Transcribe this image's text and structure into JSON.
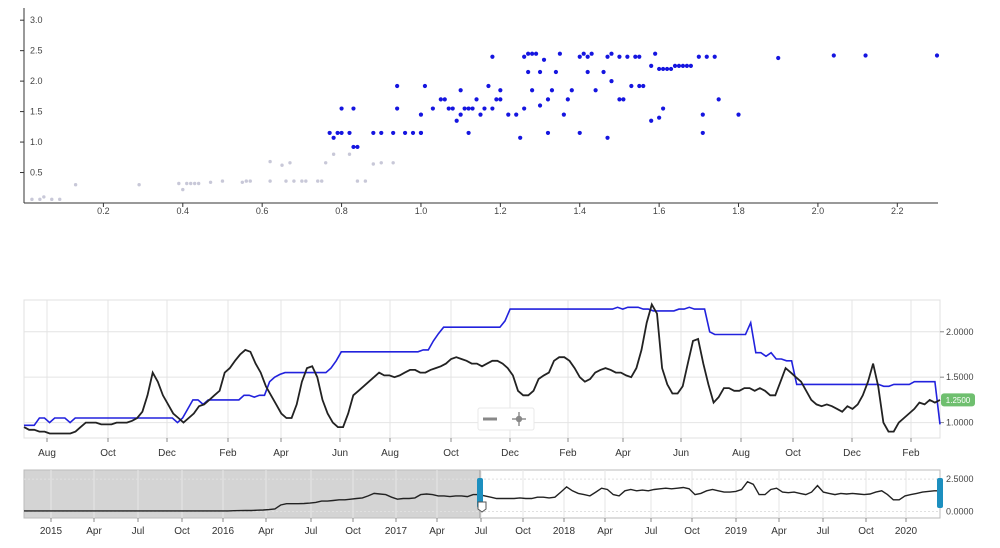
{
  "colors": {
    "scatter_point": "#1515e0",
    "scatter_faint": "#c8c8d8",
    "blue_line": "#2222dd",
    "black_line": "#222222",
    "badge": "#6fbf6f",
    "handle": "#1c8fbf",
    "shade": "#d4d4d4"
  },
  "chart_data": [
    {
      "type": "scatter",
      "xlim": [
        0.0,
        2.3
      ],
      "ylim": [
        0.0,
        3.2
      ],
      "x_ticks": [
        "0.2",
        "0.4",
        "0.6",
        "0.8",
        "1.0",
        "1.2",
        "1.4",
        "1.6",
        "1.8",
        "2.0",
        "2.2"
      ],
      "y_ticks": [
        "0.5",
        "1.0",
        "1.5",
        "2.0",
        "2.5",
        "3.0"
      ],
      "faint_points": [
        [
          0.02,
          0.06
        ],
        [
          0.04,
          0.06
        ],
        [
          0.05,
          0.1
        ],
        [
          0.07,
          0.06
        ],
        [
          0.09,
          0.06
        ],
        [
          0.13,
          0.3
        ],
        [
          0.29,
          0.3
        ],
        [
          0.39,
          0.32
        ],
        [
          0.4,
          0.22
        ],
        [
          0.41,
          0.32
        ],
        [
          0.42,
          0.32
        ],
        [
          0.43,
          0.32
        ],
        [
          0.44,
          0.32
        ],
        [
          0.47,
          0.34
        ],
        [
          0.5,
          0.36
        ],
        [
          0.55,
          0.34
        ],
        [
          0.56,
          0.36
        ],
        [
          0.57,
          0.36
        ],
        [
          0.62,
          0.36
        ],
        [
          0.62,
          0.68
        ],
        [
          0.65,
          0.62
        ],
        [
          0.66,
          0.36
        ],
        [
          0.67,
          0.66
        ],
        [
          0.68,
          0.36
        ],
        [
          0.7,
          0.36
        ],
        [
          0.71,
          0.36
        ],
        [
          0.74,
          0.36
        ],
        [
          0.75,
          0.36
        ],
        [
          0.76,
          0.66
        ],
        [
          0.78,
          0.8
        ],
        [
          0.82,
          0.8
        ],
        [
          0.84,
          0.36
        ],
        [
          0.86,
          0.36
        ],
        [
          0.88,
          0.64
        ],
        [
          0.9,
          0.66
        ],
        [
          0.93,
          0.66
        ]
      ],
      "points": [
        [
          0.77,
          1.15
        ],
        [
          0.78,
          1.07
        ],
        [
          0.79,
          1.15
        ],
        [
          0.8,
          1.15
        ],
        [
          0.8,
          1.55
        ],
        [
          0.82,
          1.15
        ],
        [
          0.83,
          1.55
        ],
        [
          0.83,
          0.92
        ],
        [
          0.84,
          0.92
        ],
        [
          0.88,
          1.15
        ],
        [
          0.9,
          1.15
        ],
        [
          0.93,
          1.15
        ],
        [
          0.94,
          1.55
        ],
        [
          0.94,
          1.92
        ],
        [
          0.96,
          1.15
        ],
        [
          0.98,
          1.15
        ],
        [
          1.0,
          1.15
        ],
        [
          1.0,
          1.45
        ],
        [
          1.0,
          1.15
        ],
        [
          1.01,
          1.92
        ],
        [
          1.03,
          1.55
        ],
        [
          1.05,
          1.7
        ],
        [
          1.06,
          1.7
        ],
        [
          1.07,
          1.55
        ],
        [
          1.08,
          1.55
        ],
        [
          1.09,
          1.35
        ],
        [
          1.1,
          1.45
        ],
        [
          1.1,
          1.85
        ],
        [
          1.11,
          1.55
        ],
        [
          1.12,
          1.55
        ],
        [
          1.12,
          1.15
        ],
        [
          1.13,
          1.55
        ],
        [
          1.14,
          1.7
        ],
        [
          1.15,
          1.45
        ],
        [
          1.16,
          1.55
        ],
        [
          1.17,
          1.92
        ],
        [
          1.18,
          1.55
        ],
        [
          1.18,
          2.4
        ],
        [
          1.19,
          1.7
        ],
        [
          1.2,
          1.85
        ],
        [
          1.2,
          1.7
        ],
        [
          1.22,
          1.45
        ],
        [
          1.24,
          1.45
        ],
        [
          1.25,
          1.07
        ],
        [
          1.26,
          2.4
        ],
        [
          1.26,
          1.55
        ],
        [
          1.27,
          2.15
        ],
        [
          1.27,
          2.45
        ],
        [
          1.28,
          2.45
        ],
        [
          1.28,
          1.85
        ],
        [
          1.29,
          2.45
        ],
        [
          1.3,
          1.6
        ],
        [
          1.3,
          2.15
        ],
        [
          1.31,
          2.35
        ],
        [
          1.32,
          1.15
        ],
        [
          1.32,
          1.7
        ],
        [
          1.33,
          1.85
        ],
        [
          1.34,
          2.15
        ],
        [
          1.35,
          2.45
        ],
        [
          1.36,
          1.45
        ],
        [
          1.37,
          1.7
        ],
        [
          1.38,
          1.85
        ],
        [
          1.4,
          2.4
        ],
        [
          1.4,
          1.15
        ],
        [
          1.41,
          2.45
        ],
        [
          1.42,
          2.4
        ],
        [
          1.42,
          2.15
        ],
        [
          1.43,
          2.45
        ],
        [
          1.44,
          1.85
        ],
        [
          1.46,
          2.15
        ],
        [
          1.47,
          1.07
        ],
        [
          1.47,
          2.4
        ],
        [
          1.48,
          2.0
        ],
        [
          1.48,
          2.45
        ],
        [
          1.5,
          1.7
        ],
        [
          1.5,
          2.4
        ],
        [
          1.51,
          1.7
        ],
        [
          1.52,
          2.4
        ],
        [
          1.53,
          1.92
        ],
        [
          1.54,
          2.4
        ],
        [
          1.55,
          2.4
        ],
        [
          1.55,
          1.92
        ],
        [
          1.56,
          1.92
        ],
        [
          1.58,
          2.25
        ],
        [
          1.58,
          1.35
        ],
        [
          1.59,
          2.45
        ],
        [
          1.6,
          1.4
        ],
        [
          1.6,
          2.2
        ],
        [
          1.61,
          1.55
        ],
        [
          1.61,
          2.2
        ],
        [
          1.62,
          2.2
        ],
        [
          1.63,
          2.2
        ],
        [
          1.64,
          2.25
        ],
        [
          1.65,
          2.25
        ],
        [
          1.66,
          2.25
        ],
        [
          1.67,
          2.25
        ],
        [
          1.68,
          2.25
        ],
        [
          1.7,
          2.4
        ],
        [
          1.71,
          1.45
        ],
        [
          1.71,
          1.15
        ],
        [
          1.72,
          2.4
        ],
        [
          1.74,
          2.4
        ],
        [
          1.75,
          1.7
        ],
        [
          1.8,
          1.45
        ],
        [
          1.9,
          2.38
        ],
        [
          2.04,
          2.42
        ],
        [
          2.12,
          2.42
        ],
        [
          2.3,
          2.42
        ]
      ]
    },
    {
      "type": "line",
      "x_ticks": [
        "Aug",
        "Oct",
        "Dec",
        "Feb",
        "Apr",
        "Jun",
        "Aug",
        "Oct",
        "Dec",
        "Feb",
        "Apr",
        "Jun",
        "Aug",
        "Oct",
        "Dec",
        "Feb"
      ],
      "y_ticks": [
        "1.0000",
        "1.5000",
        "2.0000"
      ],
      "ylim": [
        0.83,
        2.35
      ],
      "current_value": "1.2500",
      "series": [
        {
          "values": [
            0.97,
            0.97,
            0.97,
            1.05,
            1.05,
            1.0,
            1.05,
            1.05,
            1.05,
            1.0,
            1.05,
            1.05,
            1.05,
            1.05,
            1.05,
            1.05,
            1.05,
            1.05,
            1.05,
            1.05,
            1.05,
            1.05,
            1.05,
            1.05,
            1.05,
            1.05,
            1.05,
            1.05,
            1.05,
            1.05,
            1.0,
            1.05,
            1.15,
            1.25,
            1.25,
            1.2,
            1.25,
            1.25,
            1.25,
            1.25,
            1.25,
            1.25,
            1.25,
            1.3,
            1.3,
            1.28,
            1.3,
            1.3,
            1.45,
            1.5,
            1.53,
            1.55,
            1.55,
            1.55,
            1.55,
            1.55,
            1.55,
            1.55,
            1.55,
            1.55,
            1.6,
            1.68,
            1.78,
            1.78,
            1.78,
            1.78,
            1.78,
            1.78,
            1.78,
            1.78,
            1.78,
            1.78,
            1.78,
            1.78,
            1.78,
            1.78,
            1.78,
            1.78,
            1.8,
            1.8,
            1.9,
            1.98,
            2.05,
            2.05,
            2.05,
            2.05,
            2.05,
            2.05,
            2.05,
            2.05,
            2.05,
            2.05,
            2.05,
            2.05,
            2.12,
            2.25,
            2.25,
            2.25,
            2.25,
            2.25,
            2.25,
            2.25,
            2.25,
            2.25,
            2.25,
            2.25,
            2.25,
            2.25,
            2.25,
            2.25,
            2.25,
            2.25,
            2.25,
            2.25,
            2.25,
            2.25,
            2.27,
            2.25,
            2.27,
            2.27,
            2.27,
            2.25,
            2.25,
            2.23,
            2.23,
            2.23,
            2.23,
            2.23,
            2.25,
            2.25,
            2.27,
            2.25,
            2.25,
            2.25,
            2.0,
            1.97,
            1.97,
            1.97,
            1.97,
            1.97,
            1.97,
            1.97,
            2.1,
            1.77,
            1.77,
            1.73,
            1.77,
            1.7,
            1.7,
            1.68,
            1.68,
            1.42,
            1.42,
            1.42,
            1.42,
            1.42,
            1.42,
            1.42,
            1.42,
            1.42,
            1.42,
            1.42,
            1.42,
            1.42,
            1.42,
            1.42,
            1.42,
            1.42,
            1.4,
            1.4,
            1.42,
            1.42,
            1.42,
            1.42,
            1.45,
            1.45,
            1.45,
            1.45,
            1.45,
            0.98
          ]
        },
        {
          "values": [
            0.95,
            0.92,
            0.92,
            0.9,
            0.9,
            0.88,
            0.88,
            0.88,
            0.88,
            0.88,
            0.9,
            0.95,
            1.0,
            1.0,
            1.0,
            0.98,
            0.98,
            0.98,
            1.0,
            1.0,
            1.0,
            1.02,
            1.05,
            1.12,
            1.3,
            1.55,
            1.45,
            1.3,
            1.2,
            1.1,
            1.05,
            1.0,
            1.05,
            1.1,
            1.18,
            1.2,
            1.25,
            1.3,
            1.35,
            1.55,
            1.6,
            1.68,
            1.75,
            1.8,
            1.78,
            1.65,
            1.55,
            1.4,
            1.3,
            1.2,
            1.1,
            1.05,
            1.05,
            1.2,
            1.45,
            1.6,
            1.62,
            1.5,
            1.25,
            1.1,
            1.0,
            0.95,
            0.95,
            1.1,
            1.3,
            1.35,
            1.4,
            1.45,
            1.5,
            1.55,
            1.52,
            1.52,
            1.5,
            1.52,
            1.55,
            1.58,
            1.58,
            1.55,
            1.55,
            1.58,
            1.6,
            1.62,
            1.65,
            1.7,
            1.72,
            1.7,
            1.68,
            1.65,
            1.65,
            1.62,
            1.65,
            1.68,
            1.68,
            1.65,
            1.6,
            1.52,
            1.35,
            1.3,
            1.3,
            1.35,
            1.48,
            1.52,
            1.55,
            1.68,
            1.72,
            1.72,
            1.68,
            1.6,
            1.5,
            1.45,
            1.48,
            1.55,
            1.58,
            1.6,
            1.58,
            1.55,
            1.55,
            1.52,
            1.5,
            1.6,
            1.8,
            2.1,
            2.3,
            2.2,
            1.6,
            1.42,
            1.32,
            1.32,
            1.4,
            1.65,
            1.9,
            1.92,
            1.65,
            1.42,
            1.22,
            1.28,
            1.38,
            1.38,
            1.35,
            1.35,
            1.38,
            1.38,
            1.35,
            1.38,
            1.35,
            1.3,
            1.3,
            1.45,
            1.6,
            1.55,
            1.5,
            1.45,
            1.35,
            1.25,
            1.2,
            1.18,
            1.2,
            1.18,
            1.15,
            1.12,
            1.18,
            1.15,
            1.2,
            1.3,
            1.45,
            1.65,
            1.4,
            1.0,
            0.9,
            0.9,
            1.0,
            1.05,
            1.1,
            1.15,
            1.22,
            1.2,
            1.25,
            1.22,
            1.25
          ]
        }
      ]
    },
    {
      "type": "area",
      "x_ticks": [
        "2015",
        "Apr",
        "Jul",
        "Oct",
        "2016",
        "Apr",
        "Jul",
        "Oct",
        "2017",
        "Apr",
        "Jul",
        "Oct",
        "2018",
        "Apr",
        "Jul",
        "Oct",
        "2019",
        "Apr",
        "Jul",
        "Oct",
        "2020"
      ],
      "y_ticks": [
        "0.0000",
        "2.5000"
      ],
      "ylim": [
        -0.5,
        3.2
      ],
      "values": [
        0.05,
        0.05,
        0.05,
        0.05,
        0.05,
        0.05,
        0.05,
        0.05,
        0.05,
        0.05,
        0.05,
        0.05,
        0.05,
        0.05,
        0.05,
        0.05,
        0.05,
        0.05,
        0.05,
        0.05,
        0.05,
        0.05,
        0.05,
        0.05,
        0.05,
        0.05,
        0.05,
        0.05,
        0.05,
        0.05,
        0.05,
        0.05,
        0.05,
        0.05,
        0.05,
        0.05,
        0.06,
        0.07,
        0.08,
        0.08,
        0.1,
        0.12,
        0.15,
        0.2,
        0.5,
        0.6,
        0.6,
        0.6,
        0.62,
        0.65,
        0.7,
        0.8,
        0.8,
        0.85,
        0.9,
        0.9,
        0.95,
        1.0,
        1.05,
        1.2,
        1.4,
        1.35,
        1.3,
        1.1,
        0.95,
        1.0,
        1.0,
        1.05,
        1.3,
        1.35,
        1.3,
        1.2,
        1.2,
        1.15,
        1.2,
        1.2,
        1.15,
        1.3,
        1.3,
        1.2,
        1.1,
        1.0,
        1.0,
        1.0,
        1.0,
        1.05,
        1.0,
        1.0,
        1.1,
        1.1,
        1.05,
        1.1,
        1.5,
        1.9,
        1.6,
        1.4,
        1.3,
        1.2,
        1.5,
        1.8,
        1.7,
        1.3,
        1.2,
        1.6,
        1.7,
        1.6,
        1.65,
        1.6,
        1.7,
        1.75,
        1.8,
        1.75,
        1.8,
        1.85,
        1.75,
        1.3,
        1.4,
        1.6,
        1.7,
        1.6,
        1.5,
        1.5,
        1.55,
        1.7,
        2.3,
        2.1,
        1.3,
        1.3,
        1.7,
        1.8,
        1.5,
        1.45,
        1.5,
        1.4,
        1.3,
        1.5,
        2.0,
        1.5,
        1.4,
        1.3,
        1.4,
        1.35,
        1.4,
        1.35,
        1.3,
        1.35,
        1.5,
        1.6,
        1.3,
        0.9,
        0.9,
        1.2,
        1.3,
        1.4,
        1.5,
        1.55,
        1.6,
        1.6
      ]
    }
  ]
}
